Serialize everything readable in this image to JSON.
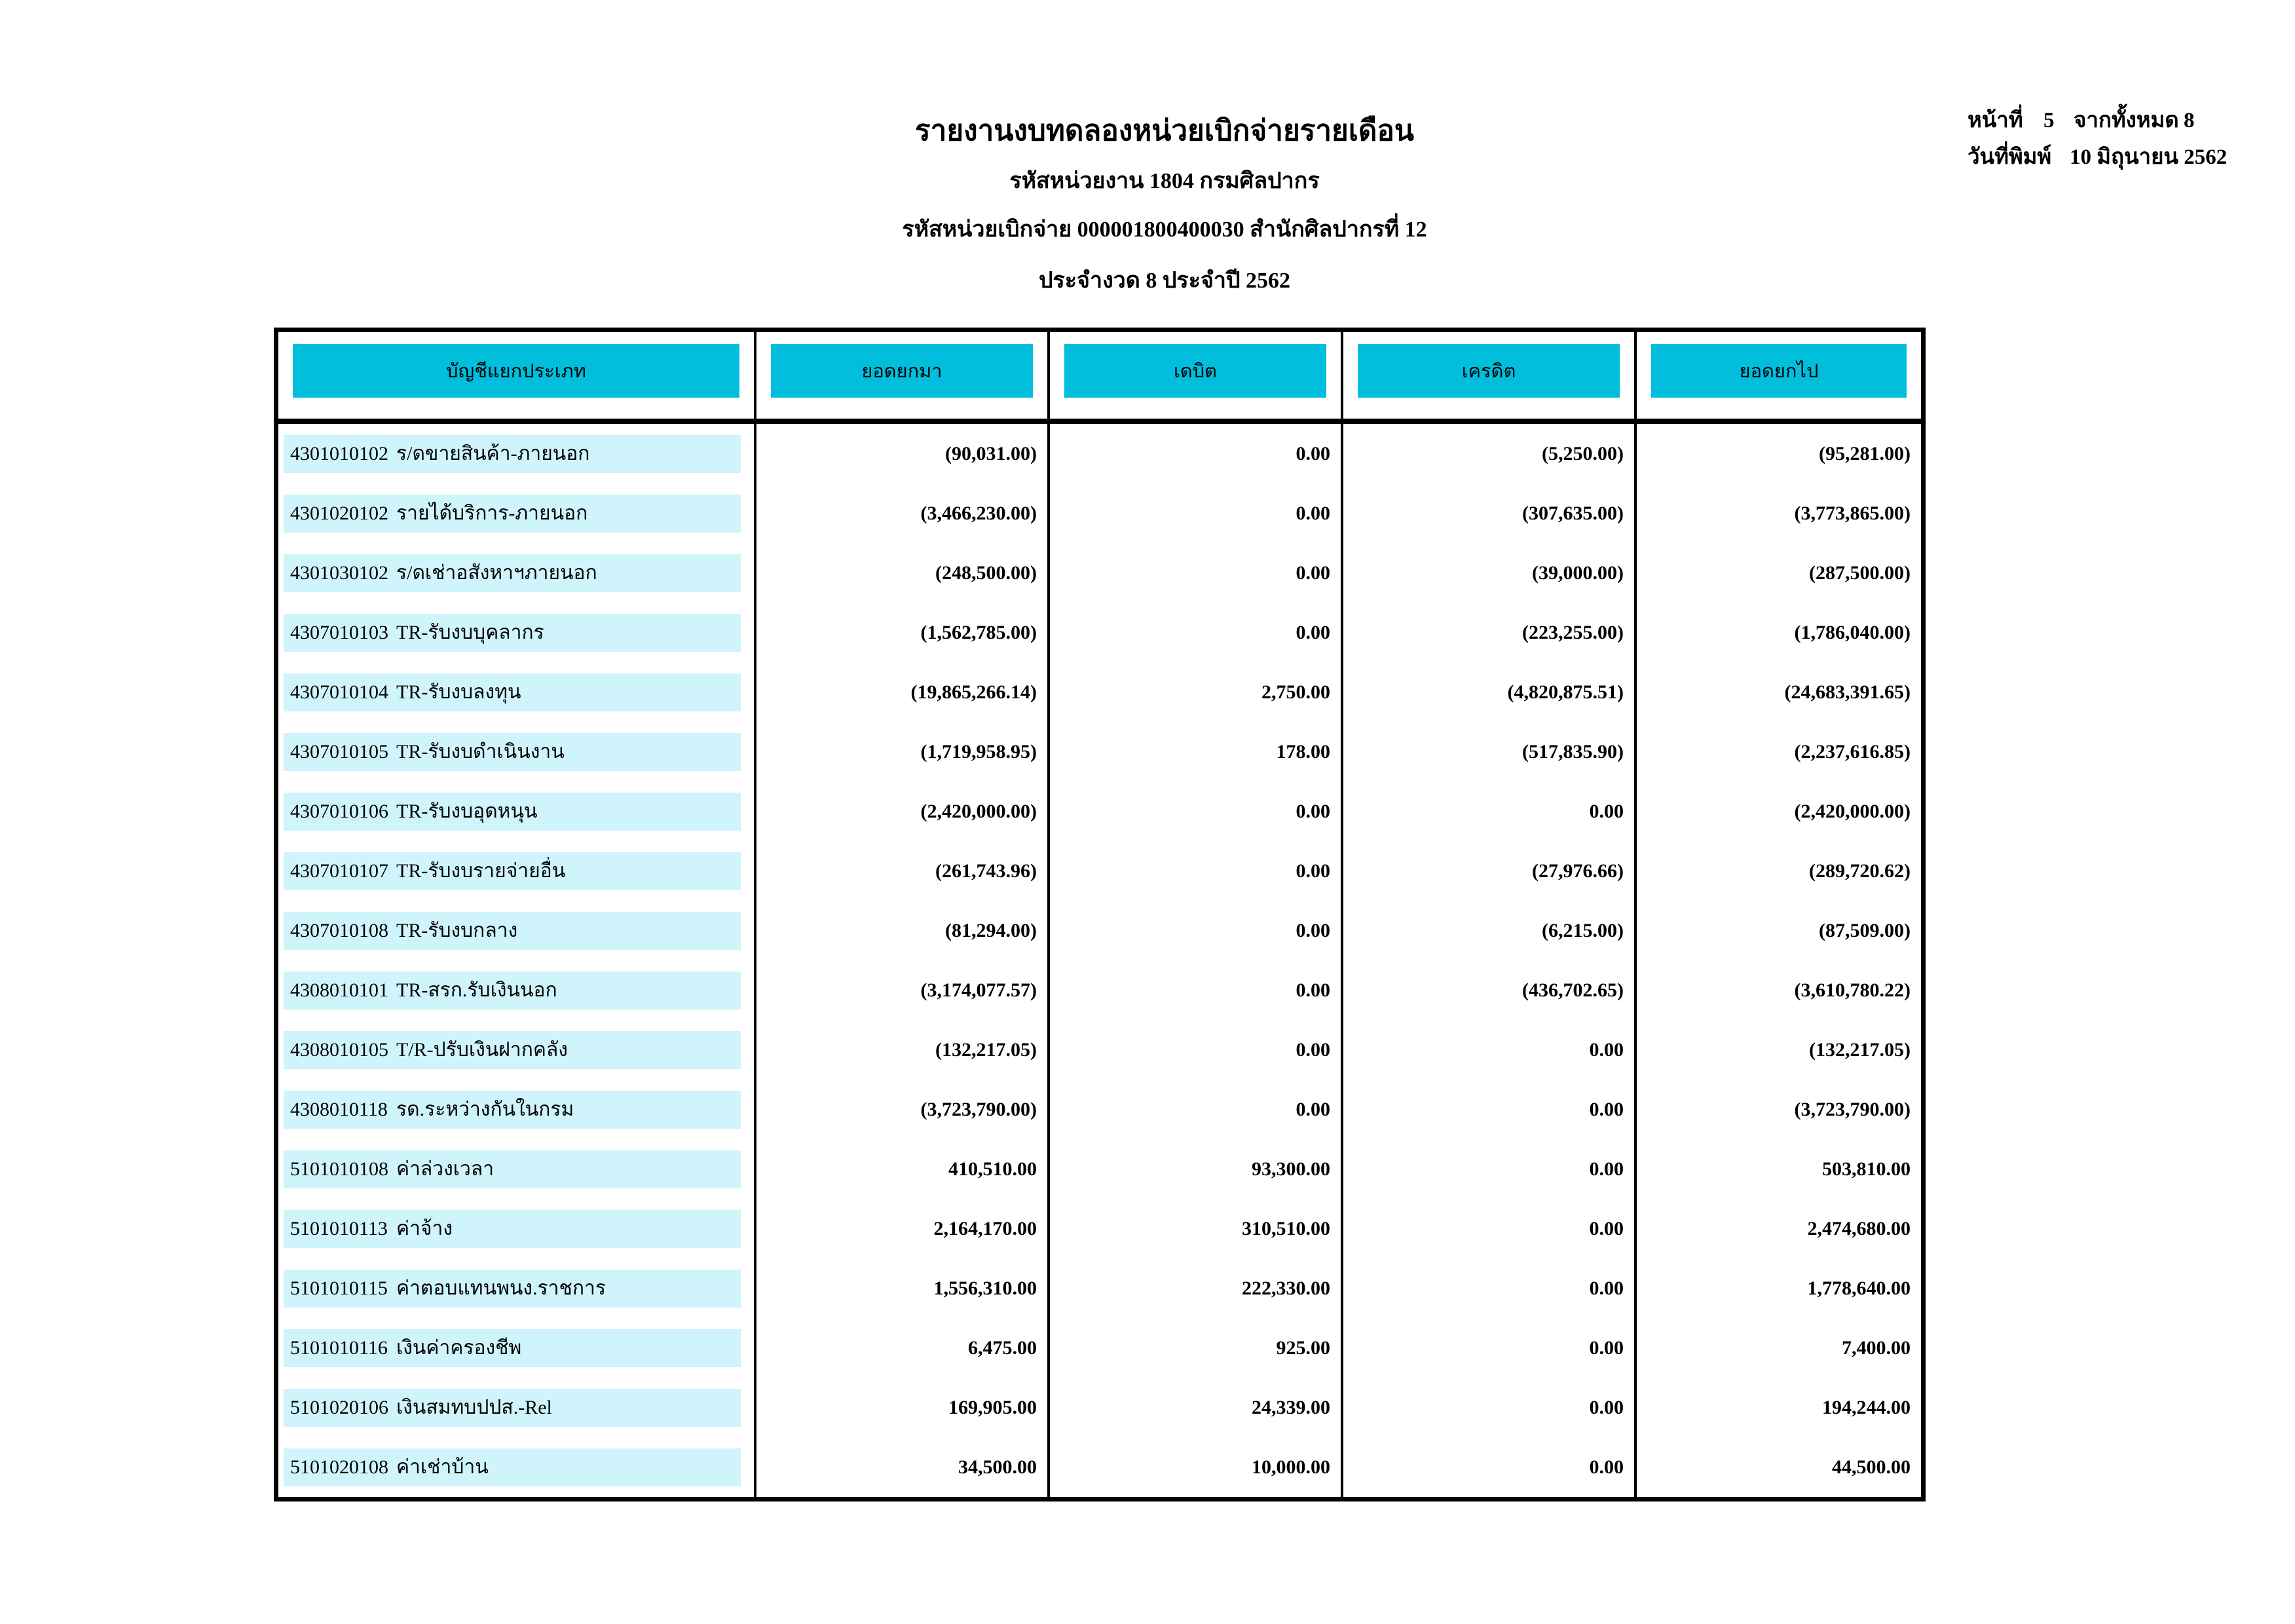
{
  "report_header": {
    "title": "รายงานงบทดลองหน่วยเบิกจ่ายรายเดือน",
    "org_code_line": "รหัสหน่วยงาน 1804 กรมศิลปากร",
    "disburse_code_line": "รหัสหน่วยเบิกจ่าย 000001800400030 สำนักศิลปากรที่ 12",
    "period_line": "ประจำงวด 8 ประจำปี 2562"
  },
  "page_info": {
    "page_label": "หน้าที่",
    "page_number": "5",
    "total_label": "จากทั้งหมด",
    "total_pages": "8",
    "date_label": "วันที่พิมพ์",
    "date_value": "10 มิถุนายน 2562"
  },
  "table": {
    "columns": [
      "บัญชีแยกประเภท",
      "ยอดยกมา",
      "เดบิต",
      "เครดิต",
      "ยอดยกไป"
    ],
    "rows": [
      {
        "code": "4301010102",
        "name": "ร/ดขายสินค้า-ภายนอก",
        "carry": "(90,031.00)",
        "debit": "0.00",
        "credit": "(5,250.00)",
        "balance": "(95,281.00)"
      },
      {
        "code": "4301020102",
        "name": "รายได้บริการ-ภายนอก",
        "carry": "(3,466,230.00)",
        "debit": "0.00",
        "credit": "(307,635.00)",
        "balance": "(3,773,865.00)"
      },
      {
        "code": "4301030102",
        "name": "ร/ดเช่าอสังหาฯภายนอก",
        "carry": "(248,500.00)",
        "debit": "0.00",
        "credit": "(39,000.00)",
        "balance": "(287,500.00)"
      },
      {
        "code": "4307010103",
        "name": "TR-รับงบบุคลากร",
        "carry": "(1,562,785.00)",
        "debit": "0.00",
        "credit": "(223,255.00)",
        "balance": "(1,786,040.00)"
      },
      {
        "code": "4307010104",
        "name": "TR-รับงบลงทุน",
        "carry": "(19,865,266.14)",
        "debit": "2,750.00",
        "credit": "(4,820,875.51)",
        "balance": "(24,683,391.65)"
      },
      {
        "code": "4307010105",
        "name": "TR-รับงบดำเนินงาน",
        "carry": "(1,719,958.95)",
        "debit": "178.00",
        "credit": "(517,835.90)",
        "balance": "(2,237,616.85)"
      },
      {
        "code": "4307010106",
        "name": "TR-รับงบอุดหนุน",
        "carry": "(2,420,000.00)",
        "debit": "0.00",
        "credit": "0.00",
        "balance": "(2,420,000.00)"
      },
      {
        "code": "4307010107",
        "name": "TR-รับงบรายจ่ายอื่น",
        "carry": "(261,743.96)",
        "debit": "0.00",
        "credit": "(27,976.66)",
        "balance": "(289,720.62)"
      },
      {
        "code": "4307010108",
        "name": "TR-รับงบกลาง",
        "carry": "(81,294.00)",
        "debit": "0.00",
        "credit": "(6,215.00)",
        "balance": "(87,509.00)"
      },
      {
        "code": "4308010101",
        "name": "TR-สรก.รับเงินนอก",
        "carry": "(3,174,077.57)",
        "debit": "0.00",
        "credit": "(436,702.65)",
        "balance": "(3,610,780.22)"
      },
      {
        "code": "4308010105",
        "name": "T/R-ปรับเงินฝากคลัง",
        "carry": "(132,217.05)",
        "debit": "0.00",
        "credit": "0.00",
        "balance": "(132,217.05)"
      },
      {
        "code": "4308010118",
        "name": "รด.ระหว่างกันในกรม",
        "carry": "(3,723,790.00)",
        "debit": "0.00",
        "credit": "0.00",
        "balance": "(3,723,790.00)"
      },
      {
        "code": "5101010108",
        "name": "ค่าล่วงเวลา",
        "carry": "410,510.00",
        "debit": "93,300.00",
        "credit": "0.00",
        "balance": "503,810.00"
      },
      {
        "code": "5101010113",
        "name": "ค่าจ้าง",
        "carry": "2,164,170.00",
        "debit": "310,510.00",
        "credit": "0.00",
        "balance": "2,474,680.00"
      },
      {
        "code": "5101010115",
        "name": "ค่าตอบแทนพนง.ราชการ",
        "carry": "1,556,310.00",
        "debit": "222,330.00",
        "credit": "0.00",
        "balance": "1,778,640.00"
      },
      {
        "code": "5101010116",
        "name": "เงินค่าครองชีพ",
        "carry": "6,475.00",
        "debit": "925.00",
        "credit": "0.00",
        "balance": "7,400.00"
      },
      {
        "code": "5101020106",
        "name": "เงินสมทบปปส.-Rel",
        "carry": "169,905.00",
        "debit": "24,339.00",
        "credit": "0.00",
        "balance": "194,244.00"
      },
      {
        "code": "5101020108",
        "name": "ค่าเช่าบ้าน",
        "carry": "34,500.00",
        "debit": "10,000.00",
        "credit": "0.00",
        "balance": "44,500.00"
      }
    ]
  },
  "colors": {
    "header_band": "#00bedc",
    "row_stripe": "#cff4fb"
  }
}
